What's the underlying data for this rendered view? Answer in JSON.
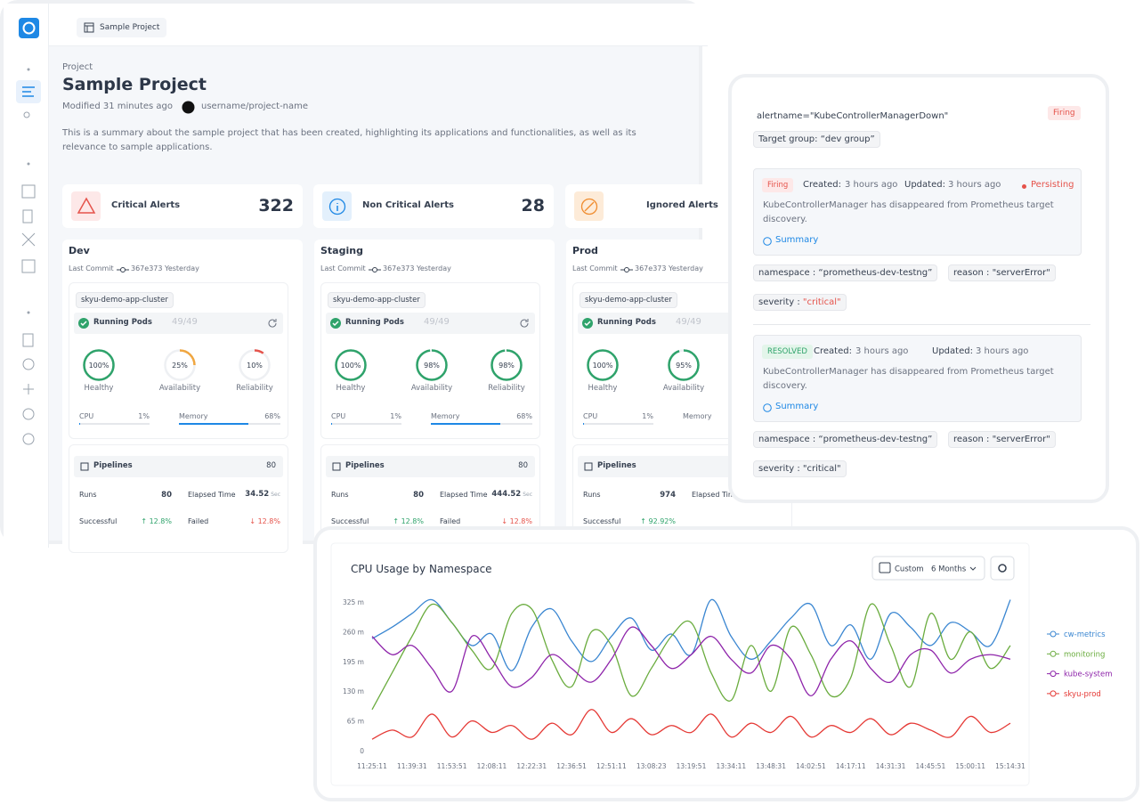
{
  "dashboard": {
    "tab": "Sample Project",
    "label": "Project",
    "title": "Sample Project",
    "modified": "Modified 31 minutes ago",
    "repo": "username/project-name",
    "description": "This is a summary about the sample project that has been created, highlighting its applications and functionalities, as well as its relevance to sample applications.",
    "alert_cards": [
      {
        "label": "Critical Alerts",
        "count": 322
      },
      {
        "label": "Non Critical Alerts",
        "count": 28
      },
      {
        "label": "Ignored Alerts"
      }
    ],
    "environments": [
      {
        "name": "Dev",
        "commit_label": "Last Commit",
        "commit": "367e373 Yesterday",
        "cluster": "skyu-demo-app-cluster",
        "pods_label": "Running Pods",
        "pods": "49/49",
        "gauges": [
          {
            "value": "100%",
            "label": "Healthy",
            "color": "#2fa36b"
          },
          {
            "value": "25%",
            "label": "Availability",
            "color": "#f0a640"
          },
          {
            "value": "10%",
            "label": "Reliability",
            "color": "#e5534b"
          }
        ],
        "cpu_label": "CPU",
        "cpu": "1%",
        "memory_label": "Memory",
        "memory": "68%",
        "pipelines_label": "Pipelines",
        "pipelines": 80,
        "runs_label": "Runs",
        "runs": 80,
        "elapsed_label": "Elapsed Time",
        "elapsed": "34.52",
        "elapsed_unit": "Sec",
        "successful_label": "Successful",
        "successful": "↑ 12.8%",
        "failed_label": "Failed",
        "failed": "↓ 12.8%"
      },
      {
        "name": "Staging",
        "commit_label": "Last Commit",
        "commit": "367e373 Yesterday",
        "cluster": "skyu-demo-app-cluster",
        "pods_label": "Running Pods",
        "pods": "49/49",
        "gauges": [
          {
            "value": "100%",
            "label": "Healthy",
            "color": "#2fa36b"
          },
          {
            "value": "98%",
            "label": "Availability",
            "color": "#2fa36b"
          },
          {
            "value": "98%",
            "label": "Reliability",
            "color": "#2fa36b"
          }
        ],
        "cpu_label": "CPU",
        "cpu": "1%",
        "memory_label": "Memory",
        "memory": "68%",
        "pipelines_label": "Pipelines",
        "pipelines": 80,
        "runs_label": "Runs",
        "runs": 80,
        "elapsed_label": "Elapsed Time",
        "elapsed": "444.52",
        "elapsed_unit": "Sec",
        "successful_label": "Successful",
        "successful": "↑ 12.8%",
        "failed_label": "Failed",
        "failed": "↓ 12.8%"
      },
      {
        "name": "Prod",
        "commit_label": "Last Commit",
        "commit": "367e373 Yesterday",
        "cluster": "skyu-demo-app-cluster",
        "pods_label": "Running Pods",
        "pods": "49/49",
        "gauges": [
          {
            "value": "100%",
            "label": "Healthy",
            "color": "#2fa36b"
          },
          {
            "value": "95%",
            "label": "Availability",
            "color": "#2fa36b"
          }
        ],
        "cpu_label": "CPU",
        "cpu": "1%",
        "memory_label": "Memory",
        "pipelines_label": "Pipelines",
        "runs_label": "Runs",
        "runs": 974,
        "elapsed_label": "Elapsed Time",
        "successful_label": "Successful",
        "successful": "↑ 92.92%"
      }
    ]
  },
  "alert": {
    "name": "alertname=\"KubeControllerManagerDown\"",
    "status": "Firing",
    "target": "Target group: “dev group”",
    "events": [
      {
        "status": "Firing",
        "created_label": "Created:",
        "created": "3 hours ago",
        "updated_label": "Updated:",
        "updated": "3 hours ago",
        "state": "Persisting",
        "message": "KubeControllerManager has disappeared from Prometheus target discovery.",
        "summary": "Summary",
        "tags": [
          "namespace : “prometheus-dev-testng”",
          "reason : \"serverError\""
        ],
        "severity_label": "severity : ",
        "severity": "\"critical\""
      },
      {
        "status": "RESOLVED",
        "created_label": "Created:",
        "created": "3 hours ago",
        "updated_label": "Updated:",
        "updated": "3 hours ago",
        "message": "KubeControllerManager has disappeared from Prometheus target discovery.",
        "summary": "Summary",
        "tags": [
          "namespace : “prometheus-dev-testng”",
          "reason : \"serverError\""
        ],
        "severity_label": "severity : ",
        "severity": "\"critical\""
      }
    ]
  },
  "chart_data": {
    "type": "line",
    "title": "CPU Usage by Namespace",
    "range_label": "Custom",
    "range": "6 Months",
    "categories": [
      "11:25:11",
      null,
      "11:39:31",
      null,
      "11:53:51",
      null,
      "12:08:11",
      null,
      "12:22:31",
      null,
      "12:36:51",
      null,
      "12:51:11",
      null,
      "13:08:23",
      null,
      "13:19:51",
      null,
      "13:34:11",
      null,
      "13:48:31",
      null,
      "14:02:51",
      null,
      "14:17:11",
      null,
      "14:31:31",
      null,
      "14:45:51",
      null,
      "15:00:11",
      null,
      "15:14:31"
    ],
    "series": [
      {
        "name": "cw-metrics",
        "color": "#3a86d1",
        "values": [
          245,
          270,
          300,
          330,
          280,
          230,
          255,
          175,
          270,
          310,
          240,
          195,
          250,
          290,
          220,
          255,
          210,
          330,
          250,
          200,
          240,
          290,
          320,
          230,
          275,
          200,
          300,
          270,
          230,
          280,
          260,
          230,
          330
        ]
      },
      {
        "name": "monitoring",
        "color": "#6aac3e",
        "values": [
          90,
          170,
          250,
          320,
          280,
          220,
          180,
          300,
          310,
          200,
          140,
          260,
          230,
          120,
          180,
          250,
          280,
          170,
          110,
          230,
          130,
          270,
          210,
          120,
          160,
          320,
          230,
          140,
          300,
          200,
          260,
          180,
          230
        ]
      },
      {
        "name": "kube-system",
        "color": "#8e24aa",
        "values": [
          250,
          210,
          230,
          180,
          130,
          250,
          200,
          140,
          160,
          210,
          180,
          150,
          200,
          270,
          230,
          180,
          210,
          250,
          200,
          170,
          230,
          200,
          120,
          200,
          240,
          180,
          150,
          210,
          220,
          170,
          200,
          210,
          200
        ]
      },
      {
        "name": "skyu-prod",
        "color": "#e53935",
        "values": [
          25,
          45,
          30,
          80,
          30,
          65,
          40,
          55,
          25,
          60,
          35,
          90,
          40,
          70,
          35,
          55,
          40,
          80,
          30,
          60,
          40,
          75,
          30,
          55,
          40,
          70,
          35,
          60,
          45,
          30,
          75,
          40,
          60
        ]
      }
    ],
    "ylim": [
      0,
      340
    ],
    "yticks": [
      0,
      {
        "value": 65,
        "label": "65 m"
      },
      {
        "value": 130,
        "label": "130 m"
      },
      {
        "value": 195,
        "label": "195 m"
      },
      {
        "value": 260,
        "label": "260 m"
      },
      {
        "value": 325,
        "label": "325 m"
      }
    ],
    "grid": false,
    "legend": "right"
  }
}
